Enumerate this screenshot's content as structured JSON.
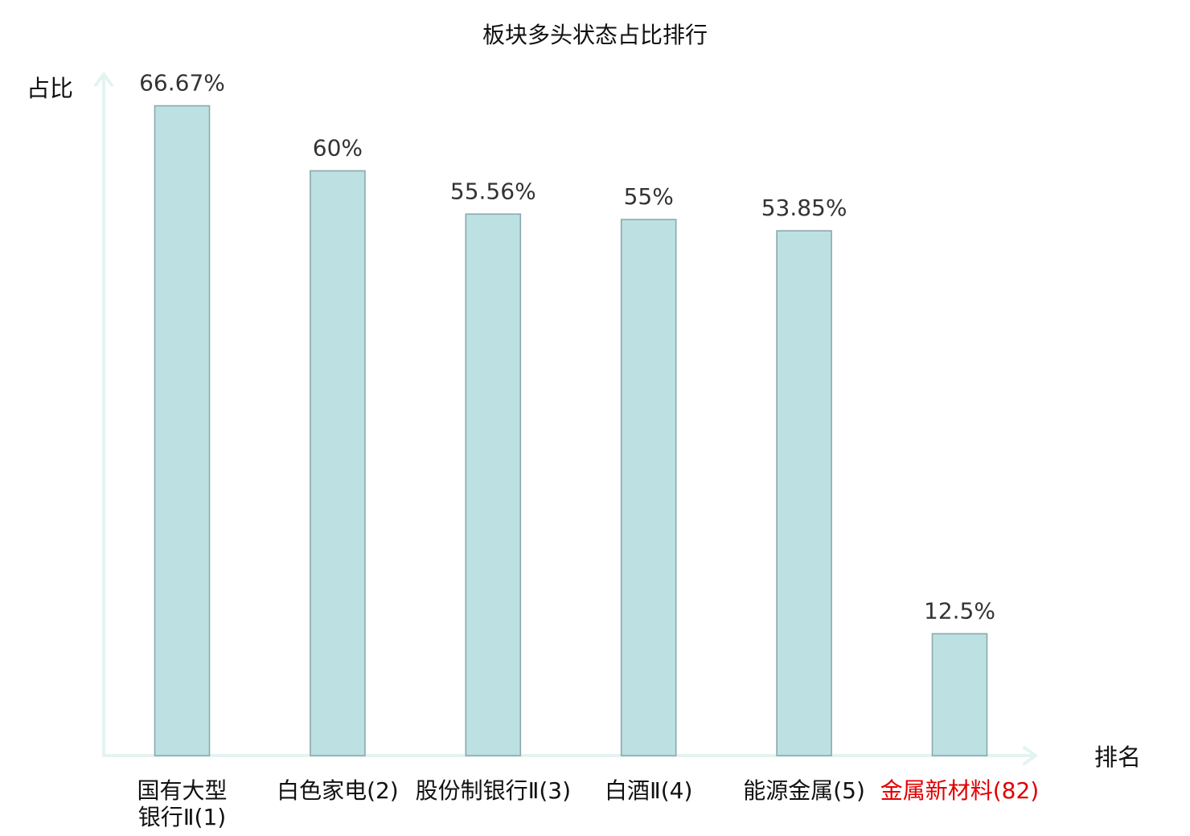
{
  "chart_data": {
    "type": "bar",
    "title": "板块多头状态占比排行",
    "ylabel": "占比",
    "xlabel": "排名",
    "ylim": [
      0,
      70
    ],
    "grid": false,
    "categories": [
      {
        "name": "国有大型银行Ⅱ",
        "rank": "(1)",
        "highlight": false
      },
      {
        "name": "白色家电",
        "rank": "(2)",
        "highlight": false
      },
      {
        "name": "股份制银行Ⅱ",
        "rank": "(3)",
        "highlight": false
      },
      {
        "name": "白酒Ⅱ",
        "rank": "(4)",
        "highlight": false
      },
      {
        "name": "能源金属",
        "rank": "(5)",
        "highlight": false
      },
      {
        "name": "金属新材料",
        "rank": "(82)",
        "highlight": true
      }
    ],
    "values": [
      66.67,
      60,
      55.56,
      55,
      53.85,
      12.5
    ],
    "value_labels": [
      "66.67%",
      "60%",
      "55.56%",
      "55%",
      "53.85%",
      "12.5%"
    ],
    "colors": {
      "bar_fill": "#bde0e3",
      "bar_stroke": "#8aa9ab",
      "axis": "#e3f3f1",
      "highlight_text": "#e00000"
    }
  }
}
